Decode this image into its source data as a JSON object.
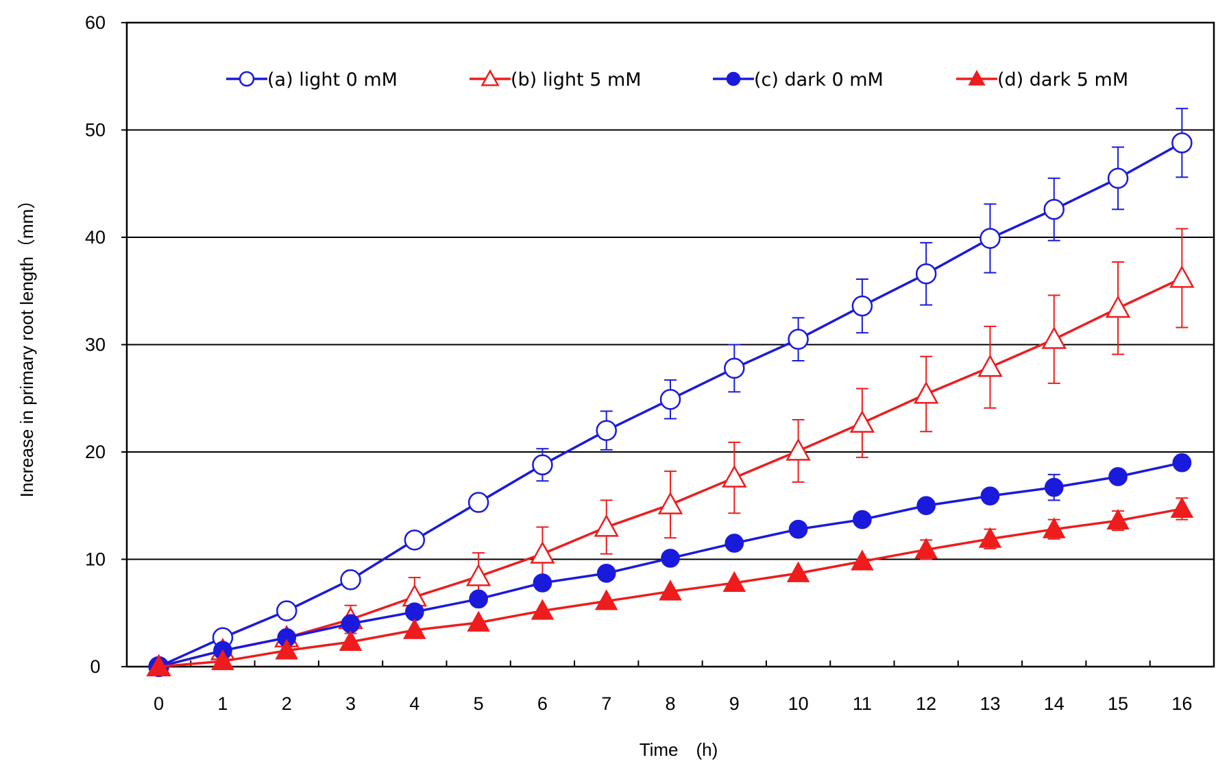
{
  "chart_data": {
    "type": "line",
    "title": "",
    "xlabel": "Time　(h)",
    "ylabel": "Increase in primary root length（mm）",
    "xlim": [
      -0.5,
      16.5
    ],
    "ylim": [
      0,
      60
    ],
    "x": [
      0,
      1,
      2,
      3,
      4,
      5,
      6,
      7,
      8,
      9,
      10,
      11,
      12,
      13,
      14,
      15,
      16
    ],
    "x_tick_labels": [
      "0",
      "1",
      "2",
      "3",
      "4",
      "5",
      "6",
      "7",
      "8",
      "9",
      "10",
      "11",
      "12",
      "13",
      "14",
      "15",
      "16"
    ],
    "y_ticks": [
      0,
      10,
      20,
      30,
      40,
      50,
      60
    ],
    "y_tick_labels": [
      "0",
      "10",
      "20",
      "30",
      "40",
      "50",
      "60"
    ],
    "grid_y": [
      10,
      20,
      30,
      40,
      50
    ],
    "legend_position": "top",
    "series": [
      {
        "name": "(a) light 0 mM",
        "color": "#1a1adc",
        "marker": "circle-open",
        "values": [
          0,
          2.7,
          5.2,
          8.1,
          11.8,
          15.3,
          18.8,
          22.0,
          24.9,
          27.8,
          30.5,
          33.6,
          36.6,
          39.9,
          42.6,
          45.5,
          48.8
        ],
        "error": [
          0,
          0,
          0,
          0,
          0,
          0,
          1.5,
          1.8,
          1.8,
          2.2,
          2.0,
          2.5,
          2.9,
          3.2,
          2.9,
          2.9,
          3.2
        ]
      },
      {
        "name": "(b) light 5 mM",
        "color": "#ee1c1c",
        "marker": "triangle-open",
        "values": [
          0,
          1.5,
          2.7,
          4.4,
          6.5,
          8.4,
          10.5,
          13.0,
          15.1,
          17.6,
          20.1,
          22.7,
          25.4,
          27.9,
          30.5,
          33.4,
          36.2
        ],
        "error": [
          0,
          0,
          0,
          1.3,
          1.8,
          2.2,
          2.5,
          2.5,
          3.1,
          3.3,
          2.9,
          3.2,
          3.5,
          3.8,
          4.1,
          4.3,
          4.6
        ]
      },
      {
        "name": "(c) dark 0 mM",
        "color": "#1a1adc",
        "marker": "circle-filled",
        "values": [
          0,
          1.5,
          2.7,
          4.0,
          5.1,
          6.3,
          7.8,
          8.7,
          10.1,
          11.5,
          12.8,
          13.7,
          15.0,
          15.9,
          16.7,
          17.7,
          19.0
        ],
        "error": [
          0,
          0,
          0,
          0,
          0,
          0,
          0,
          0,
          0,
          0,
          0,
          0,
          0,
          0,
          1.2,
          0,
          0
        ]
      },
      {
        "name": "(d) dark 5 mM",
        "color": "#ee1c1c",
        "marker": "triangle-filled",
        "values": [
          0,
          0.5,
          1.5,
          2.3,
          3.4,
          4.1,
          5.2,
          6.1,
          7.0,
          7.8,
          8.7,
          9.8,
          10.9,
          11.9,
          12.8,
          13.6,
          14.7
        ],
        "error": [
          0,
          0,
          0,
          0,
          0,
          0,
          0,
          0,
          0,
          0,
          0,
          0,
          0.9,
          0.9,
          0.9,
          0.9,
          1.0
        ]
      }
    ]
  }
}
